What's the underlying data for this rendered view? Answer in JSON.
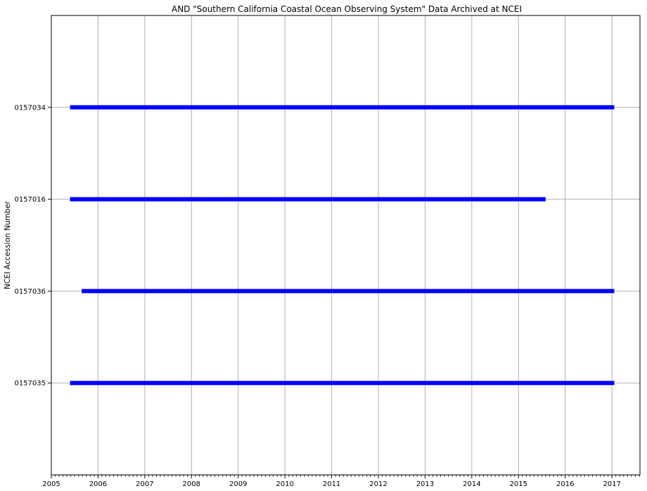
{
  "chart_data": {
    "type": "timeline",
    "title": "AND \"Southern California Coastal Ocean Observing System\"  Data Archived at NCEI",
    "xlabel": "",
    "ylabel": "NCEI Accession Number",
    "xlim": [
      2005.0,
      2017.6
    ],
    "x_ticks": [
      "2005",
      "2006",
      "2007",
      "2008",
      "2009",
      "2010",
      "2011",
      "2012",
      "2013",
      "2014",
      "2015",
      "2016",
      "2017"
    ],
    "categories": [
      "0157035",
      "0157036",
      "0157016",
      "0157034"
    ],
    "series": [
      {
        "category": "0157035",
        "start": 2005.4,
        "end": 2017.05
      },
      {
        "category": "0157036",
        "start": 2005.65,
        "end": 2017.05
      },
      {
        "category": "0157016",
        "start": 2005.4,
        "end": 2015.58
      },
      {
        "category": "0157034",
        "start": 2005.4,
        "end": 2017.05
      }
    ],
    "bar_color": "#0000ff",
    "grid": true
  }
}
